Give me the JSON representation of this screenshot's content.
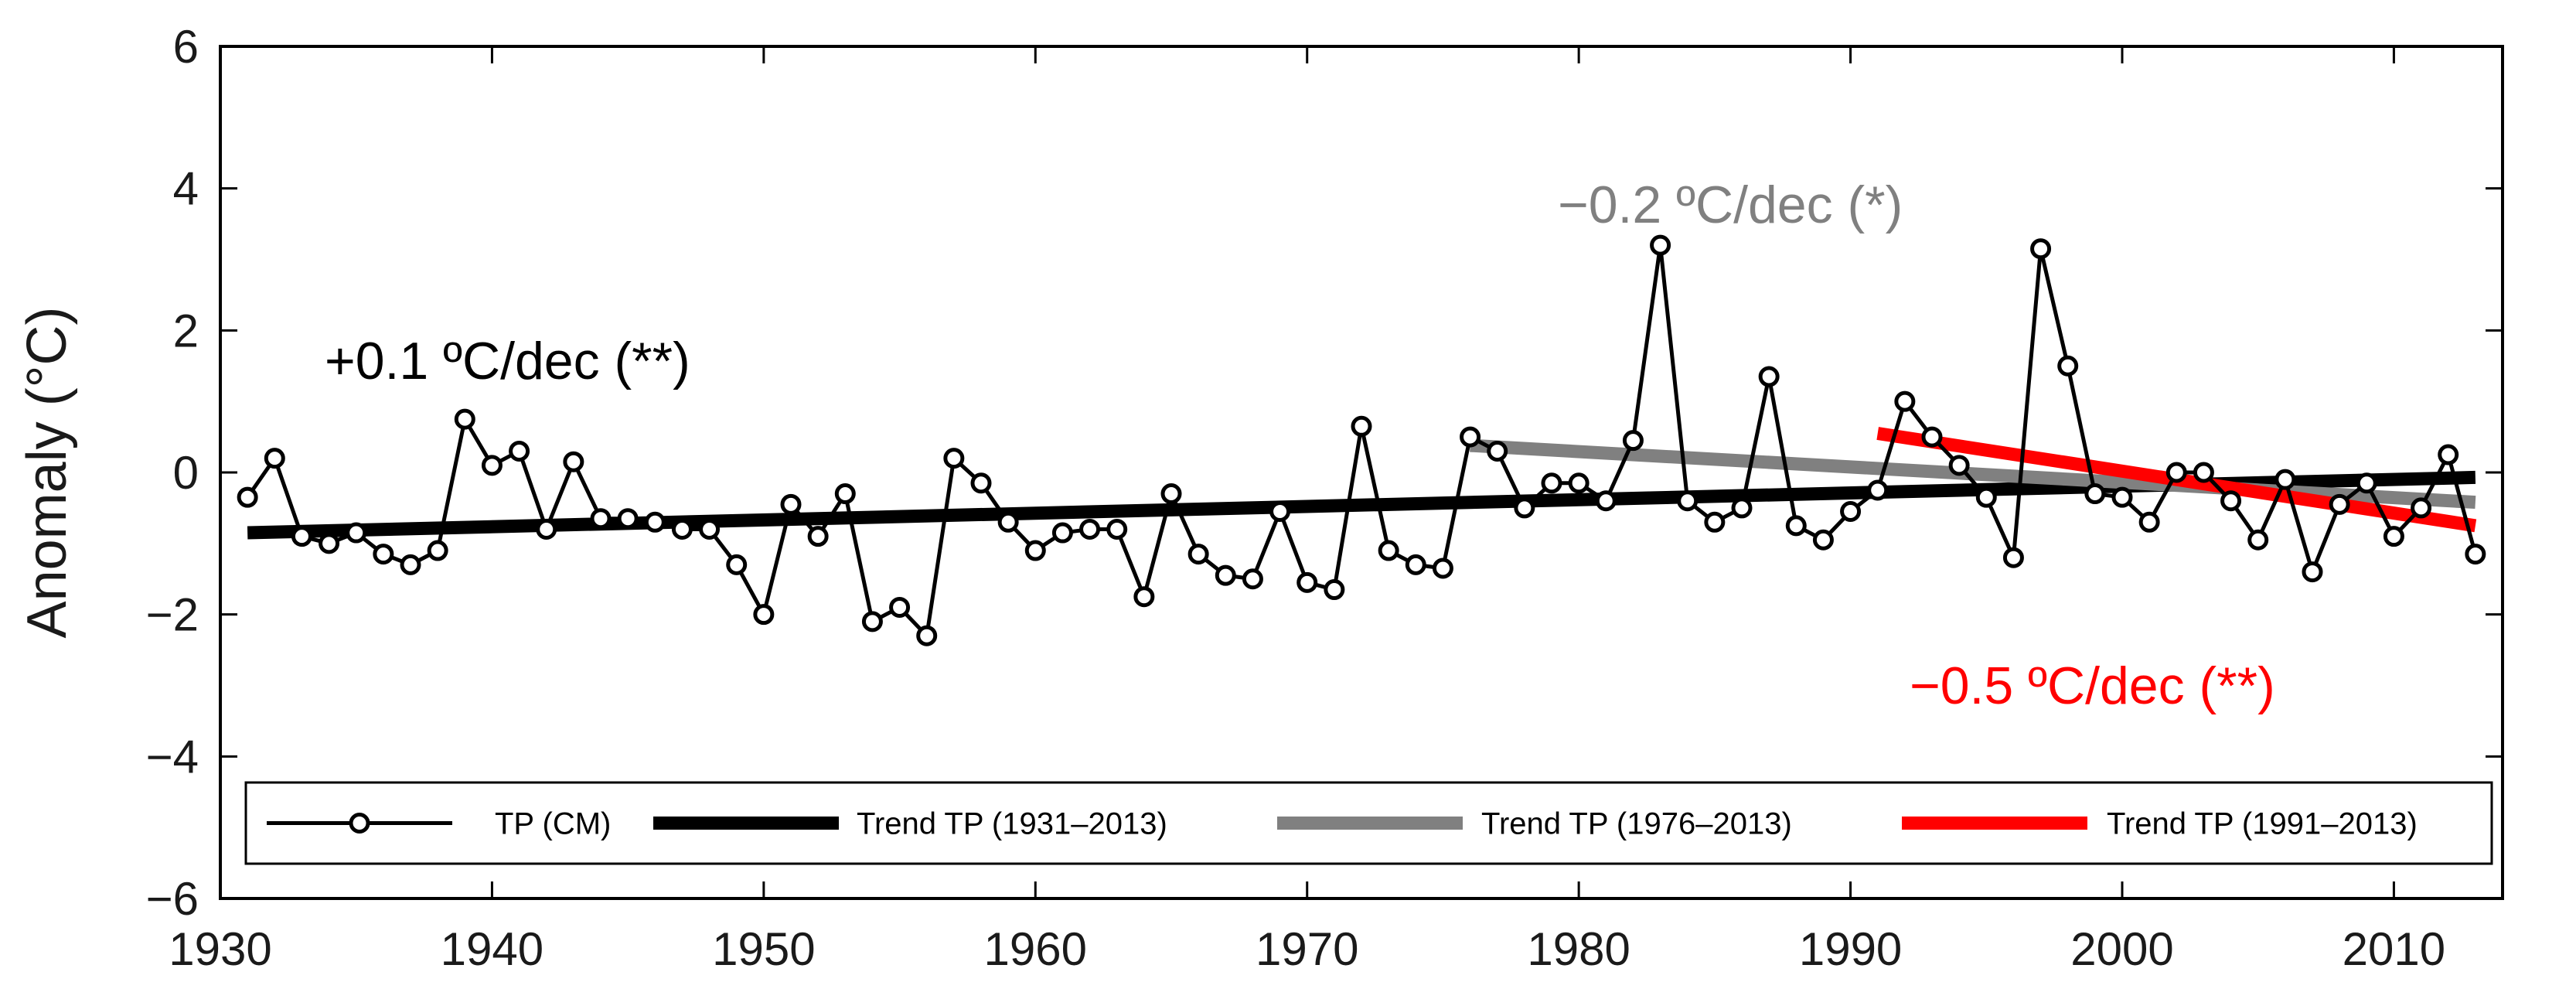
{
  "chart_data": {
    "type": "line",
    "xlabel": "",
    "ylabel": "Anomaly (°C)",
    "xlim": [
      1930,
      2014
    ],
    "ylim": [
      -6,
      6
    ],
    "x_ticks": [
      1930,
      1940,
      1950,
      1960,
      1970,
      1980,
      1990,
      2000,
      2010
    ],
    "y_ticks": [
      6,
      4,
      2,
      0,
      -2,
      -4,
      -6
    ],
    "y_tick_labels": [
      "6",
      "4",
      "2",
      "0",
      "−2",
      "−4",
      "−6"
    ],
    "series": [
      {
        "name": "TP (CM)",
        "color": "#000000",
        "marker": "open-circle",
        "x": [
          1931,
          1932,
          1933,
          1934,
          1935,
          1936,
          1937,
          1938,
          1939,
          1940,
          1941,
          1942,
          1943,
          1944,
          1945,
          1946,
          1947,
          1948,
          1949,
          1950,
          1951,
          1952,
          1953,
          1954,
          1955,
          1956,
          1957,
          1958,
          1959,
          1960,
          1961,
          1962,
          1963,
          1964,
          1965,
          1966,
          1967,
          1968,
          1969,
          1970,
          1971,
          1972,
          1973,
          1974,
          1975,
          1976,
          1977,
          1978,
          1979,
          1980,
          1981,
          1982,
          1983,
          1984,
          1985,
          1986,
          1987,
          1988,
          1989,
          1990,
          1991,
          1992,
          1993,
          1994,
          1995,
          1996,
          1997,
          1998,
          1999,
          2000,
          2001,
          2002,
          2003,
          2004,
          2005,
          2006,
          2007,
          2008,
          2009,
          2010,
          2011,
          2012,
          2013
        ],
        "values": [
          -0.35,
          0.2,
          -0.9,
          -1.0,
          -0.85,
          -1.15,
          -1.3,
          -1.1,
          0.75,
          0.1,
          0.3,
          -0.8,
          0.15,
          -0.65,
          -0.65,
          -0.7,
          -0.8,
          -0.8,
          -1.3,
          -2.0,
          -0.45,
          -0.9,
          -0.3,
          -2.1,
          -1.9,
          -2.3,
          0.2,
          -0.15,
          -0.7,
          -1.1,
          -0.85,
          -0.8,
          -0.8,
          -1.75,
          -0.3,
          -1.15,
          -1.45,
          -1.5,
          -0.55,
          -1.55,
          -1.65,
          0.65,
          -1.1,
          -1.3,
          -1.35,
          0.5,
          0.3,
          -0.5,
          -0.15,
          -0.15,
          -0.4,
          0.45,
          3.2,
          -0.4,
          -0.7,
          -0.5,
          1.35,
          -0.75,
          -0.95,
          -0.55,
          -0.25,
          1.0,
          0.5,
          0.1,
          -0.35,
          -1.2,
          3.15,
          1.5,
          -0.3,
          -0.35,
          -0.7,
          0.0,
          0.0,
          -0.4,
          -0.95,
          -0.1,
          -1.4,
          -0.45,
          -0.15,
          -0.9,
          -0.5,
          0.25,
          -1.15
        ]
      },
      {
        "name": "Trend TP (1931–2013)",
        "color": "#000000",
        "x": [
          1931,
          2013
        ],
        "values": [
          -0.85,
          -0.07
        ]
      },
      {
        "name": "Trend TP (1976–2013)",
        "color": "#808080",
        "x": [
          1976,
          2013
        ],
        "values": [
          0.38,
          -0.42
        ]
      },
      {
        "name": "Trend TP (1991–2013)",
        "color": "#ff0000",
        "x": [
          1991,
          2013
        ],
        "values": [
          0.55,
          -0.75
        ]
      }
    ],
    "annotations": [
      {
        "text": "+0.1 ºC/dec (**)",
        "color": "#000000"
      },
      {
        "text": "−0.2 ºC/dec (*)",
        "color": "#808080"
      },
      {
        "text": "−0.5 ºC/dec (**)",
        "color": "#ff0000"
      }
    ],
    "legend": {
      "placement": "bottom",
      "entries": [
        "TP (CM)",
        "Trend TP (1931–2013)",
        "Trend TP (1976–2013)",
        "Trend TP (1991–2013)"
      ]
    }
  }
}
